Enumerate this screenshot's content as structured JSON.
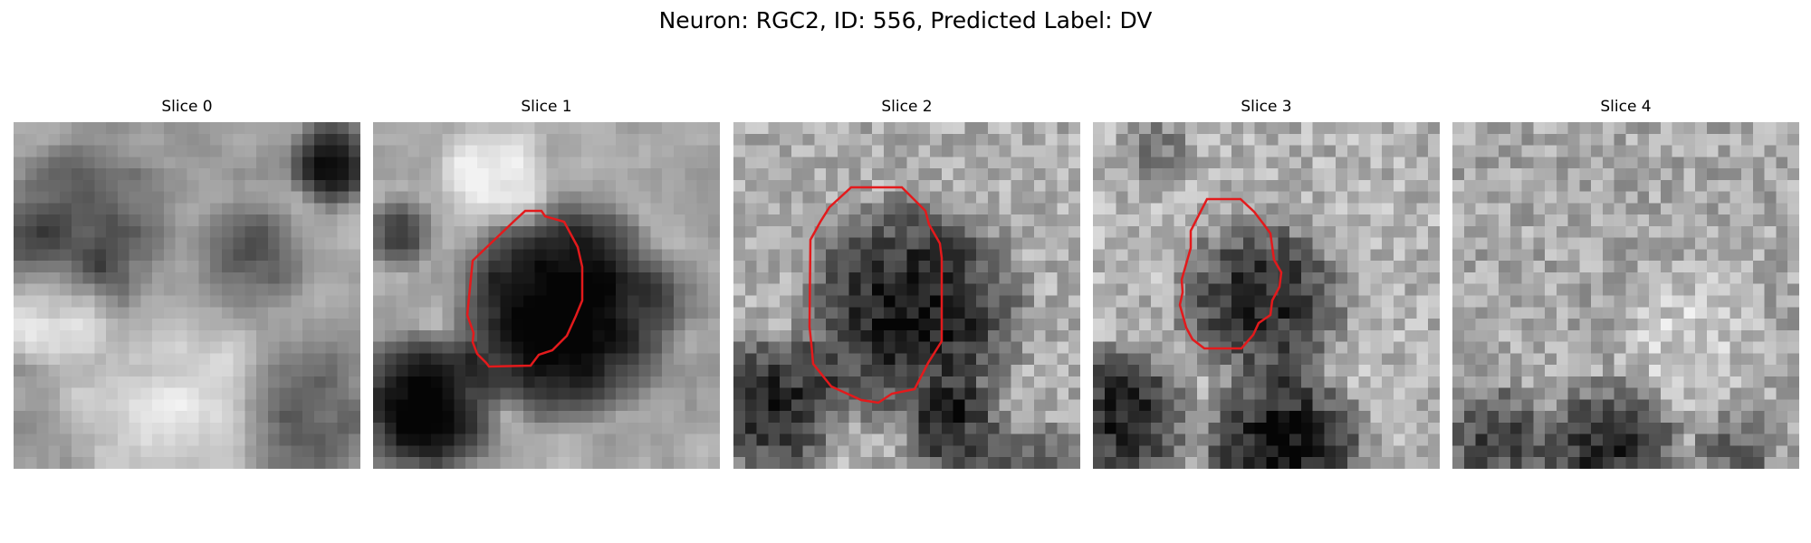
{
  "figure": {
    "title": "Neuron: RGC2, ID: 556, Predicted Label: DV"
  },
  "slices": [
    {
      "title": "Slice 0",
      "image": "grayscale-microscopy-patch",
      "contour": false
    },
    {
      "title": "Slice 1",
      "image": "grayscale-microscopy-patch",
      "contour": true
    },
    {
      "title": "Slice 2",
      "image": "grayscale-microscopy-patch",
      "contour": true
    },
    {
      "title": "Slice 3",
      "image": "grayscale-microscopy-patch",
      "contour": true
    },
    {
      "title": "Slice 4",
      "image": "grayscale-microscopy-patch",
      "contour": false
    }
  ],
  "colors": {
    "contour": "#e31a1c"
  }
}
